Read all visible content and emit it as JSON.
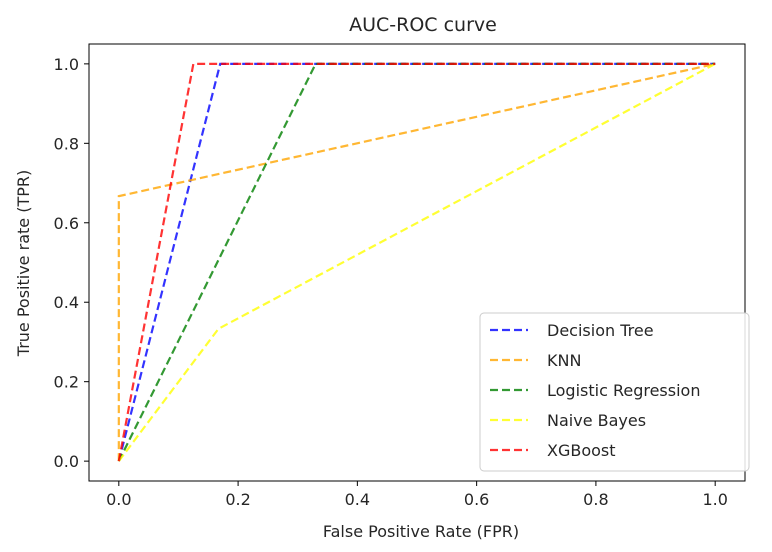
{
  "chart_data": {
    "type": "line",
    "title": "AUC-ROC curve",
    "xlabel": "False Positive Rate (FPR)",
    "ylabel": "True Positive rate (TPR)",
    "xlim": [
      -0.05,
      1.05
    ],
    "ylim": [
      -0.05,
      1.05
    ],
    "xticks": [
      "0.0",
      "0.2",
      "0.4",
      "0.6",
      "0.8",
      "1.0"
    ],
    "yticks": [
      "0.0",
      "0.2",
      "0.4",
      "0.6",
      "0.8",
      "1.0"
    ],
    "grid": false,
    "legend_position": "lower-right",
    "line_style": "dashed",
    "series": [
      {
        "name": "Decision Tree",
        "color": "#0000ff",
        "x": [
          0.0,
          0.17,
          1.0
        ],
        "y": [
          0.0,
          1.0,
          1.0
        ]
      },
      {
        "name": "KNN",
        "color": "#ffa500",
        "x": [
          0.0,
          0.0,
          1.0
        ],
        "y": [
          0.0,
          0.667,
          1.0
        ]
      },
      {
        "name": "Logistic Regression",
        "color": "#008000",
        "x": [
          0.0,
          0.33,
          1.0
        ],
        "y": [
          0.0,
          1.0,
          1.0
        ]
      },
      {
        "name": "Naive Bayes",
        "color": "#ffff00",
        "x": [
          0.0,
          0.167,
          1.0
        ],
        "y": [
          0.0,
          0.333,
          1.0
        ]
      },
      {
        "name": "XGBoost",
        "color": "#ff0000",
        "x": [
          0.0,
          0.125,
          1.0
        ],
        "y": [
          0.0,
          1.0,
          1.0
        ]
      }
    ]
  }
}
